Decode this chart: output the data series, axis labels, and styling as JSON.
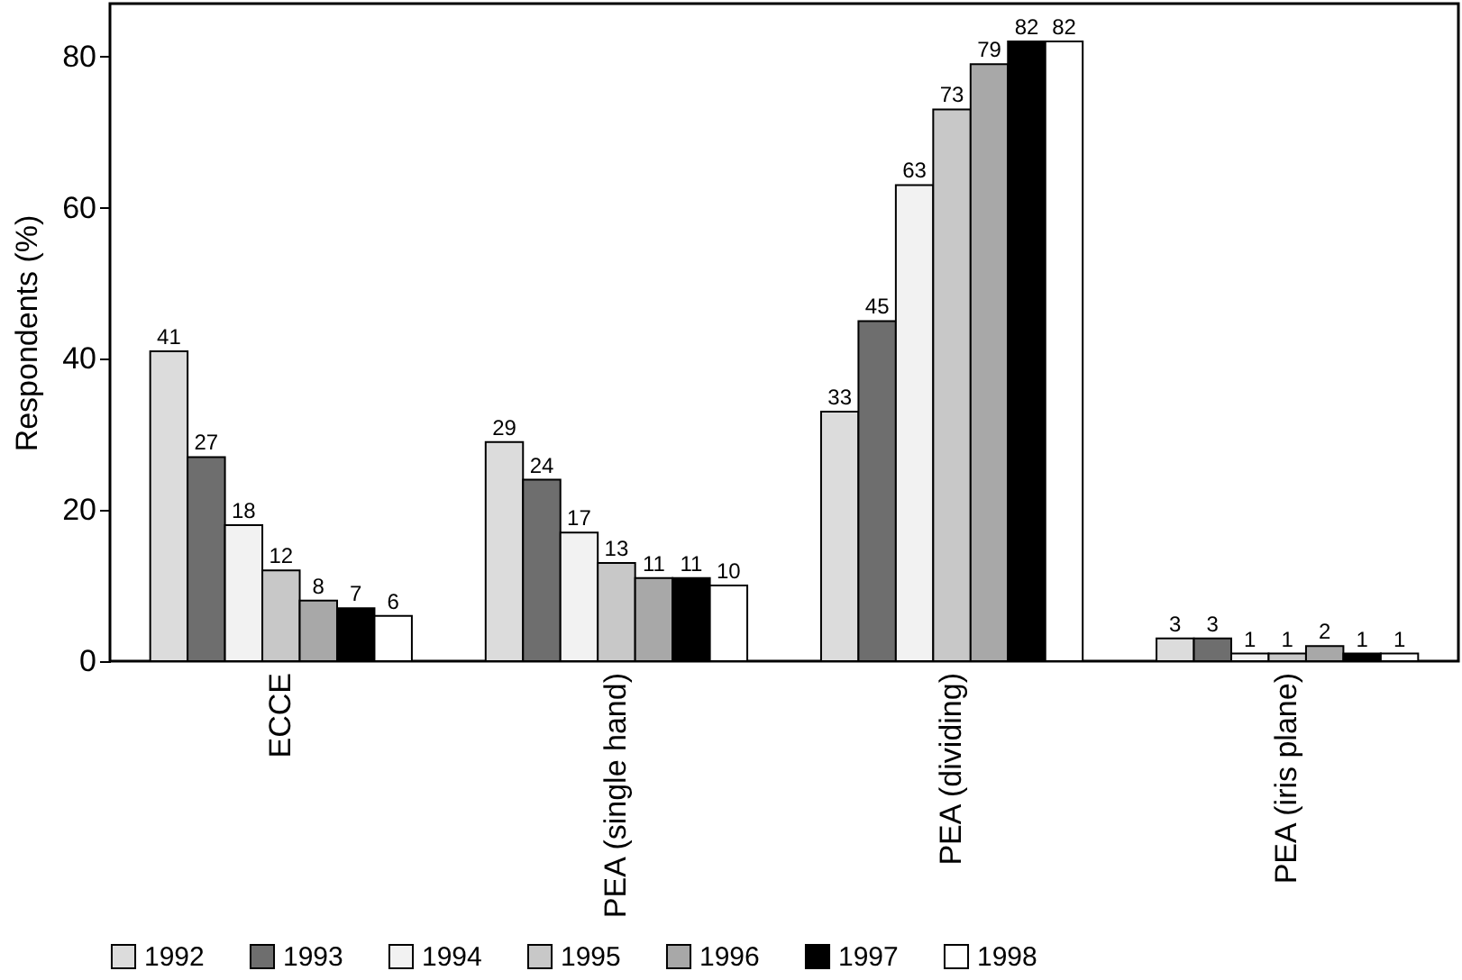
{
  "chart_data": {
    "type": "bar",
    "ylabel": "Respondents (%)",
    "categories": [
      "ECCE",
      "PEA (single hand)",
      "PEA (dividing)",
      "PEA (iris plane)"
    ],
    "series": [
      {
        "name": "1992",
        "color": "#dcdcdc",
        "values": [
          41,
          29,
          33,
          3
        ]
      },
      {
        "name": "1993",
        "color": "#6e6e6e",
        "values": [
          27,
          24,
          45,
          3
        ]
      },
      {
        "name": "1994",
        "color": "#f2f2f2",
        "values": [
          18,
          17,
          63,
          1
        ]
      },
      {
        "name": "1995",
        "color": "#c8c8c8",
        "values": [
          12,
          13,
          73,
          1
        ]
      },
      {
        "name": "1996",
        "color": "#a8a8a8",
        "values": [
          8,
          11,
          79,
          2
        ]
      },
      {
        "name": "1997",
        "color": "#000000",
        "values": [
          7,
          11,
          82,
          1
        ]
      },
      {
        "name": "1998",
        "color": "#ffffff",
        "values": [
          6,
          10,
          82,
          1
        ]
      }
    ],
    "ylim": [
      0,
      87
    ],
    "yticks": [
      0,
      20,
      40,
      60,
      80
    ],
    "data_labels": true,
    "legend": "bottom",
    "grid": false
  }
}
